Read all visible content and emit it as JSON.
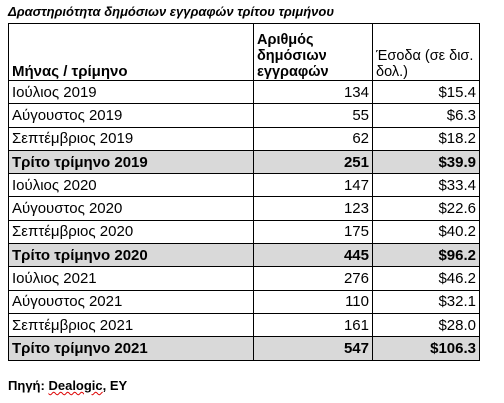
{
  "header": {
    "title": "Δραστηριότητα δημόσιων εγγραφών τρίτου τριμήνου"
  },
  "table": {
    "columns": [
      "Μήνας / τρίμηνο",
      "Αριθμός δημόσιων εγγραφών",
      "Έσοδα (σε δισ. δολ.)"
    ],
    "rows": [
      [
        "Ιούλιος 2019",
        134,
        "$15.4"
      ],
      [
        "Αύγουστος 2019",
        55,
        "$6.3"
      ],
      [
        "Σεπτέμβριος 2019",
        62,
        "$18.2"
      ],
      [
        "Τρίτο τρίμηνο 2019",
        251,
        "$39.9"
      ],
      [
        "Ιούλιος 2020",
        147,
        "$33.4"
      ],
      [
        "Αύγουστος 2020",
        123,
        "$22.6"
      ],
      [
        "Σεπτέμβριος 2020",
        175,
        "$40.2"
      ],
      [
        "Τρίτο τρίμηνο 2020",
        445,
        "$96.2"
      ],
      [
        "Ιούλιος 2021",
        276,
        "$46.2"
      ],
      [
        "Αύγουστος 2021",
        110,
        "$32.1"
      ],
      [
        "Σεπτέμβριος 2021",
        161,
        "$28.0"
      ],
      [
        "Τρίτο τρίμηνο 2021",
        547,
        "$106.3"
      ]
    ]
  },
  "footer": {
    "parts": [
      "Πηγή:",
      "Dealogic",
      ", EY"
    ]
  }
}
